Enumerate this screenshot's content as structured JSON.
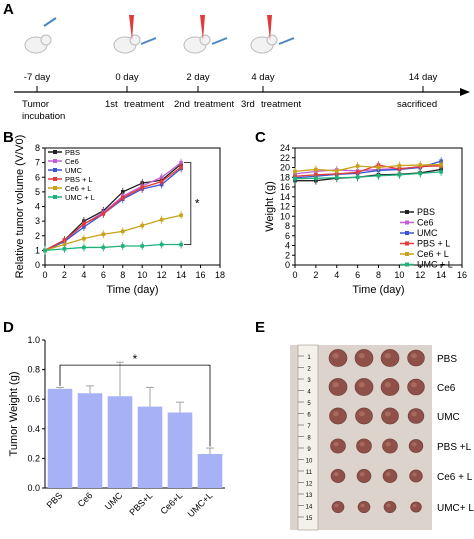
{
  "panel_labels": {
    "A": "A",
    "B": "B",
    "C": "C",
    "D": "D",
    "E": "E"
  },
  "timeline": {
    "days": [
      "-7 day",
      "0 day",
      "2 day",
      "4 day",
      "14 day"
    ],
    "events": [
      "Tumor",
      "incubation",
      "1st",
      "treatment",
      "2nd",
      "treatment",
      "3rd",
      "treatment",
      "sacrificed"
    ]
  },
  "chart_data": [
    {
      "type": "line",
      "panel": "B",
      "xlabel": "Time (day)",
      "ylabel": "Relative tumor volume (V/V0)",
      "x": [
        0,
        2,
        4,
        6,
        8,
        10,
        12,
        14
      ],
      "xlim": [
        0,
        18
      ],
      "ylim": [
        0,
        8
      ],
      "xticks": [
        0,
        2,
        4,
        6,
        8,
        10,
        12,
        14,
        16,
        18
      ],
      "yticks": [
        0,
        1,
        2,
        3,
        4,
        5,
        6,
        7,
        8
      ],
      "significance": "*",
      "series": [
        {
          "name": "PBS",
          "color": "#222222",
          "values": [
            1,
            1.7,
            3.0,
            3.7,
            5.0,
            5.6,
            5.8,
            6.9
          ]
        },
        {
          "name": "Ce6",
          "color": "#c061d6",
          "values": [
            1,
            1.6,
            2.8,
            3.6,
            4.7,
            5.4,
            6.0,
            7.0
          ]
        },
        {
          "name": "UMC",
          "color": "#3c55d0",
          "values": [
            1,
            1.6,
            2.6,
            3.5,
            4.5,
            5.2,
            5.5,
            6.6
          ]
        },
        {
          "name": "PBS + L",
          "color": "#e23b3b",
          "values": [
            1,
            1.7,
            2.8,
            3.5,
            4.6,
            5.3,
            5.7,
            6.7
          ]
        },
        {
          "name": "Ce6 + L",
          "color": "#c9a21a",
          "values": [
            1,
            1.4,
            1.8,
            2.1,
            2.3,
            2.7,
            3.1,
            3.4
          ]
        },
        {
          "name": "UMC + L",
          "color": "#20b07a",
          "values": [
            1,
            1.1,
            1.2,
            1.2,
            1.3,
            1.3,
            1.4,
            1.4
          ]
        }
      ]
    },
    {
      "type": "line",
      "panel": "C",
      "xlabel": "Time (day)",
      "ylabel": "Weight (g)",
      "x": [
        0,
        2,
        4,
        6,
        8,
        10,
        12,
        14
      ],
      "xlim": [
        0,
        16
      ],
      "ylim": [
        0,
        24
      ],
      "xticks": [
        0,
        2,
        4,
        6,
        8,
        10,
        12,
        14,
        16
      ],
      "yticks": [
        0,
        2,
        4,
        6,
        8,
        10,
        12,
        14,
        16,
        18,
        20,
        22,
        24
      ],
      "series": [
        {
          "name": "PBS",
          "color": "#222222",
          "values": [
            17.3,
            17.3,
            17.8,
            18.0,
            18.5,
            18.6,
            18.9,
            19.6
          ]
        },
        {
          "name": "Ce6",
          "color": "#c061d6",
          "values": [
            18.7,
            19.2,
            19.5,
            19.3,
            19.6,
            19.8,
            20.1,
            20.6
          ]
        },
        {
          "name": "UMC",
          "color": "#3c55d0",
          "values": [
            17.9,
            18.2,
            18.6,
            18.8,
            19.4,
            19.6,
            20.0,
            21.3
          ]
        },
        {
          "name": "PBS + L",
          "color": "#e23b3b",
          "values": [
            18.2,
            18.5,
            18.7,
            19.0,
            20.5,
            19.7,
            20.2,
            20.3
          ]
        },
        {
          "name": "Ce6 + L",
          "color": "#c9a21a",
          "values": [
            19.2,
            19.6,
            19.3,
            20.3,
            20.0,
            20.4,
            20.5,
            20.6
          ]
        },
        {
          "name": "UMC + L",
          "color": "#20b07a",
          "values": [
            17.7,
            17.8,
            17.9,
            18.0,
            18.3,
            18.5,
            18.8,
            19.1
          ]
        }
      ]
    },
    {
      "type": "bar",
      "panel": "D",
      "ylabel": "Tumor Weight (g)",
      "categories": [
        "PBS",
        "Ce6",
        "UMC",
        "PBS+L",
        "Ce6+L",
        "UMC+L"
      ],
      "values": [
        0.67,
        0.64,
        0.62,
        0.55,
        0.51,
        0.23
      ],
      "errors": [
        0.01,
        0.05,
        0.23,
        0.13,
        0.07,
        0.04
      ],
      "ylim": [
        0,
        1.0
      ],
      "yticks": [
        0.0,
        0.2,
        0.4,
        0.6,
        0.8,
        1.0
      ],
      "color": "#a6b2f5",
      "significance": "*"
    }
  ],
  "photo": {
    "labels": [
      "PBS",
      "Ce6",
      "UMC",
      "PBS +L",
      "Ce6 + L",
      "UMC+ L"
    ],
    "ruler": [
      "1",
      "2",
      "3",
      "4",
      "5",
      "6",
      "7",
      "8",
      "9",
      "10",
      "11",
      "12",
      "13",
      "14",
      "15"
    ]
  },
  "colors": {
    "bar": "#a6b2f5",
    "photo_bg": "#d8cfc8",
    "tumor": "#8e5048"
  }
}
